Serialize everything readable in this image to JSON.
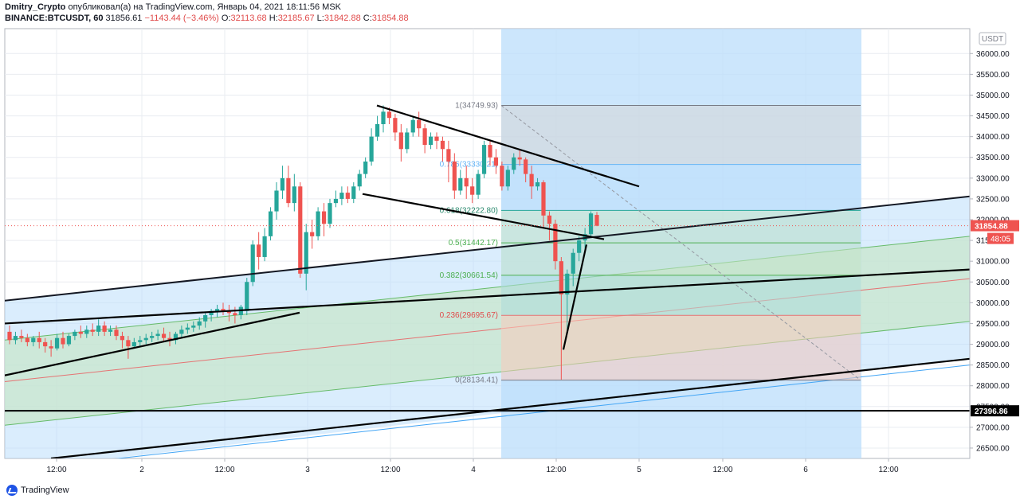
{
  "header": {
    "author": "Dmitry_Crypto",
    "published_text": "опубликовал(а) на TradingView.com, Январь 04, 2021 18:11:56 MSK",
    "symbol": "BINANCE:BTCUSDT, 60",
    "last": "31856.61",
    "change": "−1143.44 (−3.46%)",
    "o_label": "O:",
    "o_value": "32113.68",
    "h_label": "H:",
    "h_value": "32185.67",
    "l_label": "L:",
    "l_value": "31842.88",
    "c_label": "C:",
    "c_value": "31854.88"
  },
  "logo_text": "TradingView",
  "colors": {
    "up": "#26a69a",
    "down": "#ef5350",
    "fib_area": "#bbdefb",
    "grid": "#e9ecf1"
  },
  "chart_data": {
    "type": "candlestick",
    "currency_label": "USDT",
    "ylim": [
      26250,
      36600
    ],
    "y_ticks": [
      "26500.00",
      "27000.00",
      "27500.00",
      "28000.00",
      "28500.00",
      "29000.00",
      "29500.00",
      "30000.00",
      "30500.00",
      "31000.00",
      "31500.00",
      "32000.00",
      "32500.00",
      "33000.00",
      "33500.00",
      "34000.00",
      "34500.00",
      "35000.00",
      "35500.00",
      "36000.00"
    ],
    "x_ticks": [
      "12:00",
      "2",
      "12:00",
      "3",
      "12:00",
      "4",
      "12:00",
      "5",
      "12:00",
      "6",
      "12:00"
    ],
    "price_label": "31854.88",
    "countdown_label": "48:05",
    "level_label": "27396.86",
    "level_value": 27396.86,
    "fib_levels": [
      {
        "ratio": "1",
        "price": 34749.93,
        "label": "1(34749.93)"
      },
      {
        "ratio": "0.786",
        "price": 33330.21,
        "label": "0.786(33330.21)"
      },
      {
        "ratio": "0.618",
        "price": 32222.8,
        "label": "0.618(32222.80)"
      },
      {
        "ratio": "0.5",
        "price": 31442.17,
        "label": "0.5(31442.17)"
      },
      {
        "ratio": "0.382",
        "price": 30661.54,
        "label": "0.382(30661.54)"
      },
      {
        "ratio": "0.236",
        "price": 29695.67,
        "label": "0.236(29695.67)"
      },
      {
        "ratio": "0",
        "price": 28134.41,
        "label": "0(28134.41)"
      }
    ],
    "candles": [
      {
        "o": 29300,
        "h": 29450,
        "c": 29100,
        "l": 29000
      },
      {
        "o": 29100,
        "h": 29300,
        "c": 29200,
        "l": 29000
      },
      {
        "o": 29200,
        "h": 29350,
        "c": 29150,
        "l": 29050
      },
      {
        "o": 29150,
        "h": 29250,
        "c": 29050,
        "l": 28950
      },
      {
        "o": 29050,
        "h": 29200,
        "c": 29150,
        "l": 28950
      },
      {
        "o": 29150,
        "h": 29300,
        "c": 29050,
        "l": 28900
      },
      {
        "o": 29050,
        "h": 29150,
        "c": 28950,
        "l": 28800
      },
      {
        "o": 28950,
        "h": 29100,
        "c": 28900,
        "l": 28700
      },
      {
        "o": 28900,
        "h": 29250,
        "c": 29150,
        "l": 28850
      },
      {
        "o": 29150,
        "h": 29300,
        "c": 29000,
        "l": 28900
      },
      {
        "o": 29000,
        "h": 29250,
        "c": 29200,
        "l": 28950
      },
      {
        "o": 29200,
        "h": 29350,
        "c": 29300,
        "l": 29100
      },
      {
        "o": 29300,
        "h": 29450,
        "c": 29250,
        "l": 29150
      },
      {
        "o": 29250,
        "h": 29450,
        "c": 29350,
        "l": 29150
      },
      {
        "o": 29350,
        "h": 29500,
        "c": 29300,
        "l": 29200
      },
      {
        "o": 29300,
        "h": 29600,
        "c": 29450,
        "l": 29200
      },
      {
        "o": 29450,
        "h": 29550,
        "c": 29300,
        "l": 29200
      },
      {
        "o": 29300,
        "h": 29450,
        "c": 29350,
        "l": 29200
      },
      {
        "o": 29350,
        "h": 29450,
        "c": 29200,
        "l": 29100
      },
      {
        "o": 29200,
        "h": 29300,
        "c": 29100,
        "l": 28900
      },
      {
        "o": 29100,
        "h": 29200,
        "c": 28950,
        "l": 28650
      },
      {
        "o": 28950,
        "h": 29150,
        "c": 29050,
        "l": 28900
      },
      {
        "o": 29050,
        "h": 29200,
        "c": 29100,
        "l": 28950
      },
      {
        "o": 29100,
        "h": 29250,
        "c": 29150,
        "l": 29000
      },
      {
        "o": 29150,
        "h": 29300,
        "c": 29200,
        "l": 29050
      },
      {
        "o": 29200,
        "h": 29350,
        "c": 29250,
        "l": 29100
      },
      {
        "o": 29250,
        "h": 29400,
        "c": 29150,
        "l": 29050
      },
      {
        "o": 29150,
        "h": 29300,
        "c": 29100,
        "l": 28950
      },
      {
        "o": 29100,
        "h": 29300,
        "c": 29250,
        "l": 29000
      },
      {
        "o": 29250,
        "h": 29450,
        "c": 29350,
        "l": 29150
      },
      {
        "o": 29350,
        "h": 29500,
        "c": 29400,
        "l": 29250
      },
      {
        "o": 29400,
        "h": 29550,
        "c": 29450,
        "l": 29300
      },
      {
        "o": 29450,
        "h": 29650,
        "c": 29550,
        "l": 29350
      },
      {
        "o": 29550,
        "h": 29750,
        "c": 29700,
        "l": 29400
      },
      {
        "o": 29700,
        "h": 29850,
        "c": 29800,
        "l": 29550
      },
      {
        "o": 29800,
        "h": 29950,
        "c": 29850,
        "l": 29650
      },
      {
        "o": 29850,
        "h": 30000,
        "c": 29800,
        "l": 29700
      },
      {
        "o": 29800,
        "h": 29950,
        "c": 29750,
        "l": 29550
      },
      {
        "o": 29750,
        "h": 29900,
        "c": 29700,
        "l": 29500
      },
      {
        "o": 29700,
        "h": 29950,
        "c": 29900,
        "l": 29600
      },
      {
        "o": 29800,
        "h": 30600,
        "c": 30500,
        "l": 29700
      },
      {
        "o": 30500,
        "h": 31500,
        "c": 31400,
        "l": 30400
      },
      {
        "o": 31400,
        "h": 31700,
        "c": 31100,
        "l": 30800
      },
      {
        "o": 31100,
        "h": 31800,
        "c": 31600,
        "l": 31000
      },
      {
        "o": 31600,
        "h": 32300,
        "c": 32200,
        "l": 31500
      },
      {
        "o": 32200,
        "h": 32900,
        "c": 32700,
        "l": 32000
      },
      {
        "o": 32700,
        "h": 33300,
        "c": 33000,
        "l": 32500
      },
      {
        "o": 33000,
        "h": 33300,
        "c": 32400,
        "l": 32300
      },
      {
        "o": 32400,
        "h": 33100,
        "c": 32800,
        "l": 32200
      },
      {
        "o": 32800,
        "h": 32900,
        "c": 30700,
        "l": 30600
      },
      {
        "o": 30700,
        "h": 31900,
        "c": 31700,
        "l": 30300
      },
      {
        "o": 31700,
        "h": 32000,
        "c": 31600,
        "l": 31300
      },
      {
        "o": 31600,
        "h": 32300,
        "c": 32200,
        "l": 31500
      },
      {
        "o": 32200,
        "h": 32400,
        "c": 31900,
        "l": 31600
      },
      {
        "o": 31900,
        "h": 32500,
        "c": 32400,
        "l": 31800
      },
      {
        "o": 32400,
        "h": 32700,
        "c": 32500,
        "l": 32300
      },
      {
        "o": 32500,
        "h": 32800,
        "c": 32650,
        "l": 32350
      },
      {
        "o": 32650,
        "h": 32800,
        "c": 32500,
        "l": 32400
      },
      {
        "o": 32500,
        "h": 32900,
        "c": 32800,
        "l": 32400
      },
      {
        "o": 32800,
        "h": 33200,
        "c": 33100,
        "l": 32700
      },
      {
        "o": 33100,
        "h": 33500,
        "c": 33400,
        "l": 33000
      },
      {
        "o": 33400,
        "h": 34200,
        "c": 34000,
        "l": 33300
      },
      {
        "o": 34000,
        "h": 34500,
        "c": 34300,
        "l": 33900
      },
      {
        "o": 34300,
        "h": 34750,
        "c": 34600,
        "l": 34100
      },
      {
        "o": 34600,
        "h": 34700,
        "c": 34450,
        "l": 34300
      },
      {
        "o": 34450,
        "h": 34550,
        "c": 34100,
        "l": 33900
      },
      {
        "o": 34100,
        "h": 34300,
        "c": 33700,
        "l": 33400
      },
      {
        "o": 33700,
        "h": 34200,
        "c": 34100,
        "l": 33600
      },
      {
        "o": 34100,
        "h": 34500,
        "c": 34400,
        "l": 34000
      },
      {
        "o": 34400,
        "h": 34600,
        "c": 34200,
        "l": 34000
      },
      {
        "o": 34200,
        "h": 34300,
        "c": 33800,
        "l": 33600
      },
      {
        "o": 33800,
        "h": 34100,
        "c": 34000,
        "l": 33700
      },
      {
        "o": 34000,
        "h": 34100,
        "c": 33900,
        "l": 33700
      },
      {
        "o": 33900,
        "h": 34000,
        "c": 33700,
        "l": 33400
      },
      {
        "o": 33700,
        "h": 33900,
        "c": 33400,
        "l": 32900
      },
      {
        "o": 33400,
        "h": 33600,
        "c": 32700,
        "l": 32500
      },
      {
        "o": 32700,
        "h": 33200,
        "c": 33000,
        "l": 32600
      },
      {
        "o": 33000,
        "h": 33300,
        "c": 32800,
        "l": 32500
      },
      {
        "o": 32800,
        "h": 33000,
        "c": 32600,
        "l": 32400
      },
      {
        "o": 32600,
        "h": 33200,
        "c": 33100,
        "l": 32500
      },
      {
        "o": 33100,
        "h": 33900,
        "c": 33800,
        "l": 33000
      },
      {
        "o": 33800,
        "h": 33900,
        "c": 33500,
        "l": 33300
      },
      {
        "o": 33500,
        "h": 33700,
        "c": 33300,
        "l": 33100
      },
      {
        "o": 33300,
        "h": 33400,
        "c": 32800,
        "l": 32700
      },
      {
        "o": 32800,
        "h": 33300,
        "c": 33200,
        "l": 32700
      },
      {
        "o": 33200,
        "h": 33600,
        "c": 33500,
        "l": 33100
      },
      {
        "o": 33500,
        "h": 33700,
        "c": 33450,
        "l": 33300
      },
      {
        "o": 33450,
        "h": 33500,
        "c": 33100,
        "l": 32900
      },
      {
        "o": 33100,
        "h": 33300,
        "c": 32800,
        "l": 32500
      },
      {
        "o": 32800,
        "h": 33000,
        "c": 32900,
        "l": 32700
      },
      {
        "o": 32900,
        "h": 32950,
        "c": 32100,
        "l": 31800
      },
      {
        "o": 32100,
        "h": 32200,
        "c": 31900,
        "l": 31500
      },
      {
        "o": 31900,
        "h": 32000,
        "c": 31000,
        "l": 30800
      },
      {
        "o": 31000,
        "h": 31100,
        "c": 30200,
        "l": 28150
      },
      {
        "o": 30200,
        "h": 30800,
        "c": 30700,
        "l": 29300
      },
      {
        "o": 30700,
        "h": 31300,
        "c": 31200,
        "l": 30400
      },
      {
        "o": 31200,
        "h": 31600,
        "c": 31500,
        "l": 31000
      },
      {
        "o": 31500,
        "h": 31800,
        "c": 31650,
        "l": 31300
      },
      {
        "o": 31650,
        "h": 32200,
        "c": 32150,
        "l": 31600
      },
      {
        "o": 32113.68,
        "h": 32185.67,
        "c": 31854.88,
        "l": 31842.88
      }
    ]
  }
}
